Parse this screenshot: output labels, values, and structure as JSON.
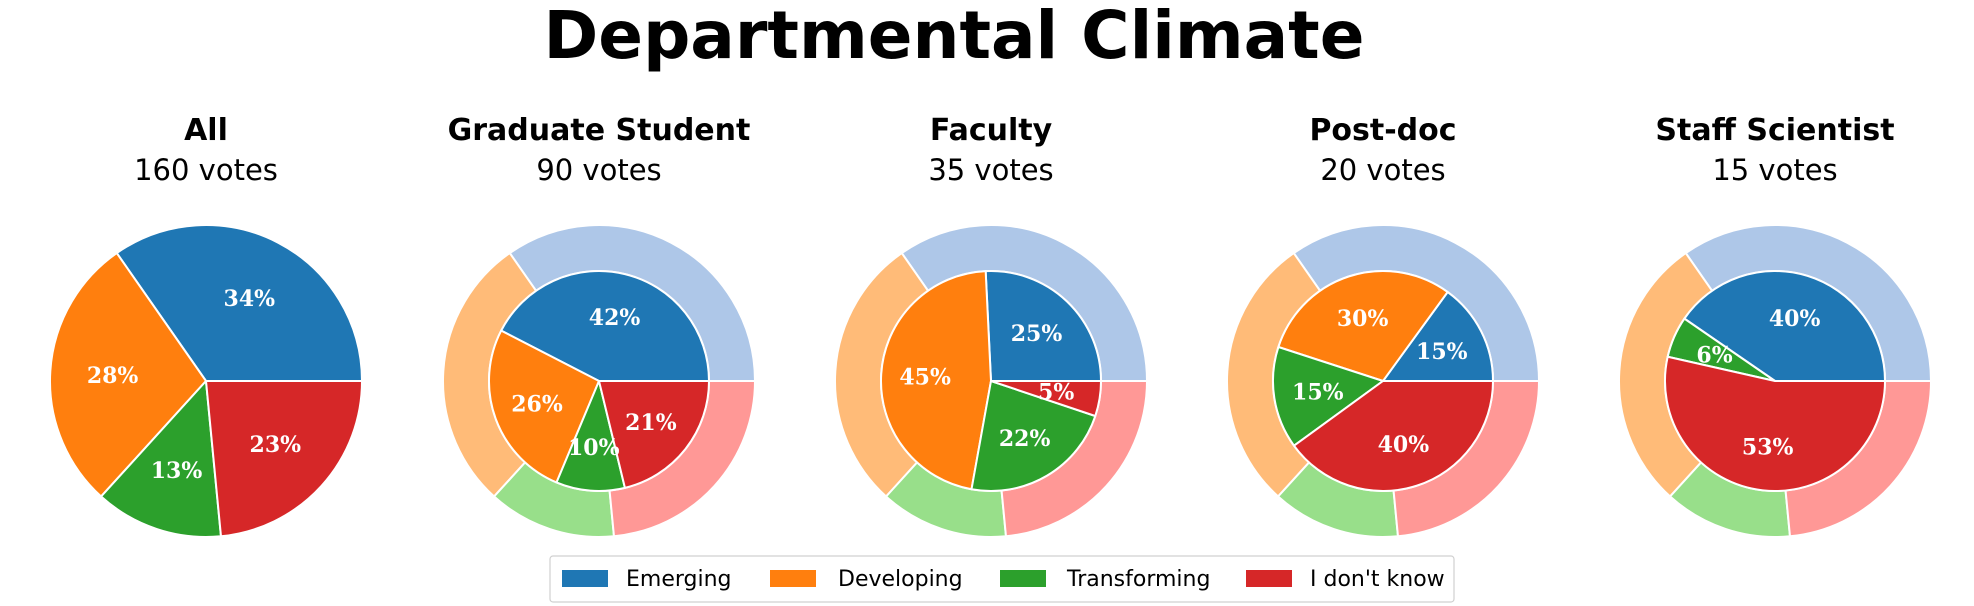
{
  "title": "Departmental Climate",
  "chart_data": [
    {
      "type": "pie",
      "title": "All",
      "subtitle": "160 votes",
      "categories": [
        "Emerging",
        "Developing",
        "Transforming",
        "I don't know"
      ],
      "inner": [],
      "values": [
        34,
        28,
        13,
        23
      ],
      "labels": [
        "34%",
        "28%",
        "13%",
        "23%"
      ]
    },
    {
      "type": "pie",
      "title": "Graduate Student",
      "subtitle": "90 votes",
      "categories": [
        "Emerging",
        "Developing",
        "Transforming",
        "I don't know"
      ],
      "outer": [
        34,
        28,
        13,
        23
      ],
      "values": [
        42,
        26,
        10,
        21
      ],
      "labels": [
        "42%",
        "26%",
        "10%",
        "21%"
      ]
    },
    {
      "type": "pie",
      "title": "Faculty",
      "subtitle": "35 votes",
      "categories": [
        "Emerging",
        "Developing",
        "Transforming",
        "I don't know"
      ],
      "outer": [
        34,
        28,
        13,
        23
      ],
      "values": [
        25,
        45,
        22,
        5
      ],
      "labels": [
        "25%",
        "45%",
        "22%",
        "5%"
      ]
    },
    {
      "type": "pie",
      "title": "Post-doc",
      "subtitle": "20 votes",
      "categories": [
        "Emerging",
        "Developing",
        "Transforming",
        "I don't know"
      ],
      "outer": [
        34,
        28,
        13,
        23
      ],
      "values": [
        15,
        30,
        15,
        40
      ],
      "labels": [
        "15%",
        "30%",
        "15%",
        "40%"
      ]
    },
    {
      "type": "pie",
      "title": "Staff Scientist",
      "subtitle": "15 votes",
      "categories": [
        "Emerging",
        "Developing",
        "Transforming",
        "I don't know"
      ],
      "outer": [
        34,
        28,
        13,
        23
      ],
      "values": [
        40,
        0,
        6,
        53
      ],
      "labels": [
        "40%",
        "",
        "6%",
        "53%"
      ]
    }
  ],
  "legend": {
    "placement": "bottom-center",
    "items": [
      {
        "label": "Emerging",
        "color": "#1f77b4"
      },
      {
        "label": "Developing",
        "color": "#ff7f0e"
      },
      {
        "label": "Transforming",
        "color": "#2ca02c"
      },
      {
        "label": "I don't know",
        "color": "#d62728"
      }
    ]
  },
  "colors": {
    "strong": [
      "#1f77b4",
      "#ff7f0e",
      "#2ca02c",
      "#d62728"
    ],
    "light": [
      "#aec7e8",
      "#ffbb78",
      "#98df8a",
      "#ff9896"
    ]
  }
}
